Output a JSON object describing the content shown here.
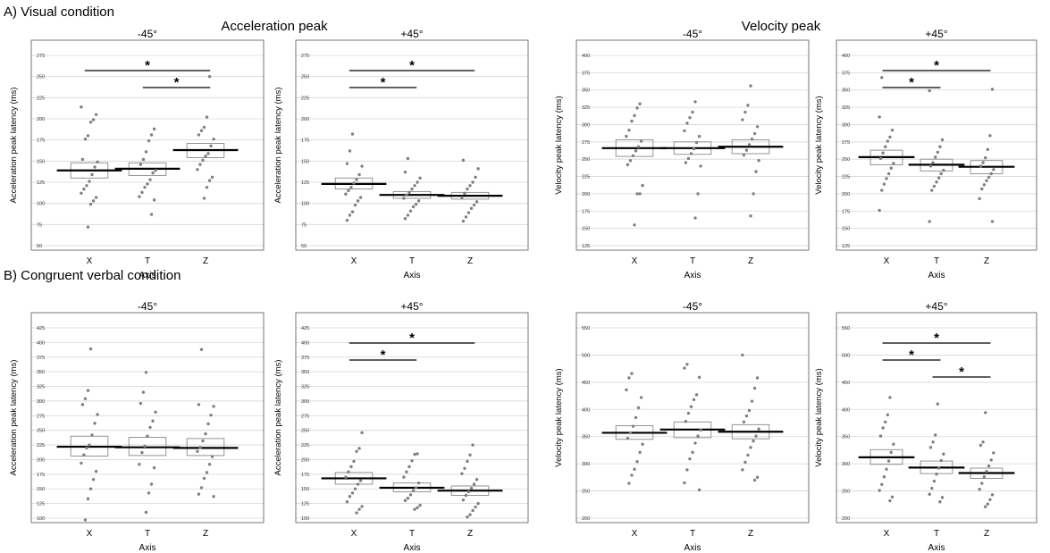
{
  "figure": {
    "section_a": "A) Visual condition",
    "section_b": "B) Congruent verbal condition",
    "group_acc": "Acceleration peak",
    "group_vel": "Velocity peak"
  },
  "chart_data": [
    {
      "id": "A-acc-m45",
      "type": "scatter",
      "title": "-45°",
      "xlabel": "Axis",
      "ylabel": "Acceleration peak latency (ms)",
      "ylim": [
        50,
        275
      ],
      "yticks": [
        50,
        75,
        100,
        125,
        150,
        175,
        200,
        225,
        250,
        275
      ],
      "grid": true,
      "categories": [
        "X",
        "T",
        "Z"
      ],
      "points": [
        [
          214,
          205,
          199,
          196,
          180,
          176,
          152,
          149,
          143,
          134,
          126,
          121,
          117,
          112,
          107,
          103,
          99,
          72
        ],
        [
          188,
          181,
          174,
          161,
          152,
          146,
          139,
          136,
          128,
          123,
          119,
          113,
          108,
          104,
          87
        ],
        [
          250,
          202,
          190,
          186,
          181,
          176,
          168,
          159,
          156,
          151,
          146,
          140,
          131,
          127,
          119,
          106
        ]
      ],
      "boxes": [
        {
          "median": 139,
          "q1": 130,
          "q3": 148
        },
        {
          "median": 141,
          "q1": 133,
          "q3": 148
        },
        {
          "median": 163,
          "q1": 154,
          "q3": 171
        }
      ],
      "significance": [
        {
          "from": "X",
          "to": "Z",
          "label": "*"
        },
        {
          "from": "T",
          "to": "Z",
          "label": "*"
        }
      ]
    },
    {
      "id": "A-acc-p45",
      "type": "scatter",
      "title": "+45°",
      "xlabel": "Axis",
      "ylabel": "Acceleration peak latency (ms)",
      "ylim": [
        50,
        275
      ],
      "yticks": [
        50,
        75,
        100,
        125,
        150,
        175,
        200,
        225,
        250,
        275
      ],
      "grid": true,
      "categories": [
        "X",
        "T",
        "Z"
      ],
      "points": [
        [
          182,
          162,
          147,
          144,
          134,
          128,
          124,
          119,
          115,
          111,
          107,
          103,
          98,
          90,
          86,
          80
        ],
        [
          153,
          137,
          130,
          125,
          121,
          117,
          113,
          110,
          106,
          103,
          99,
          96,
          91,
          86,
          82
        ],
        [
          151,
          141,
          131,
          125,
          121,
          117,
          112,
          107,
          102,
          98,
          94,
          89,
          84,
          79
        ]
      ],
      "boxes": [
        {
          "median": 123,
          "q1": 117,
          "q3": 130
        },
        {
          "median": 110,
          "q1": 106,
          "q3": 114
        },
        {
          "median": 109,
          "q1": 105,
          "q3": 113
        }
      ],
      "significance": [
        {
          "from": "X",
          "to": "Z",
          "label": "*"
        },
        {
          "from": "X",
          "to": "T",
          "label": "*"
        }
      ]
    },
    {
      "id": "A-vel-m45",
      "type": "scatter",
      "title": "-45°",
      "xlabel": "Axis",
      "ylabel": "Velocity peak latency (ms)",
      "ylim": [
        125,
        400
      ],
      "yticks": [
        125,
        150,
        175,
        200,
        225,
        250,
        275,
        300,
        325,
        350,
        375,
        400
      ],
      "grid": true,
      "categories": [
        "X",
        "T",
        "Z"
      ],
      "points": [
        [
          330,
          324,
          313,
          305,
          292,
          283,
          276,
          268,
          262,
          255,
          248,
          242,
          212,
          200,
          200,
          155
        ],
        [
          333,
          318,
          310,
          302,
          291,
          283,
          274,
          265,
          258,
          251,
          245,
          240,
          200,
          165
        ],
        [
          356,
          328,
          318,
          307,
          297,
          287,
          279,
          271,
          263,
          256,
          248,
          232,
          200,
          168
        ]
      ],
      "boxes": [
        {
          "median": 266,
          "q1": 254,
          "q3": 278
        },
        {
          "median": 266,
          "q1": 257,
          "q3": 275
        },
        {
          "median": 268,
          "q1": 258,
          "q3": 278
        }
      ],
      "significance": []
    },
    {
      "id": "A-vel-p45",
      "type": "scatter",
      "title": "+45°",
      "xlabel": "Axis",
      "ylabel": "Velocity peak latency (ms)",
      "ylim": [
        125,
        400
      ],
      "yticks": [
        125,
        150,
        175,
        200,
        225,
        250,
        275,
        300,
        325,
        350,
        375,
        400
      ],
      "grid": true,
      "categories": [
        "X",
        "T",
        "Z"
      ],
      "points": [
        [
          368,
          311,
          292,
          282,
          276,
          268,
          259,
          251,
          244,
          237,
          229,
          222,
          214,
          205,
          176
        ],
        [
          349,
          278,
          268,
          260,
          253,
          245,
          240,
          234,
          229,
          223,
          217,
          211,
          205,
          160
        ],
        [
          351,
          284,
          264,
          252,
          245,
          240,
          235,
          229,
          224,
          219,
          213,
          207,
          193,
          160
        ]
      ],
      "boxes": [
        {
          "median": 253,
          "q1": 242,
          "q3": 263
        },
        {
          "median": 242,
          "q1": 233,
          "q3": 250
        },
        {
          "median": 239,
          "q1": 229,
          "q3": 248
        }
      ],
      "significance": [
        {
          "from": "X",
          "to": "Z",
          "label": "*"
        },
        {
          "from": "X",
          "to": "T",
          "label": "*"
        }
      ]
    },
    {
      "id": "B-acc-m45",
      "type": "scatter",
      "title": "-45°",
      "xlabel": "Axis",
      "ylabel": "Acceleration peak latency (ms)",
      "ylim": [
        100,
        425
      ],
      "yticks": [
        100,
        125,
        150,
        175,
        200,
        225,
        250,
        275,
        300,
        325,
        350,
        375,
        400,
        425
      ],
      "grid": true,
      "categories": [
        "X",
        "T",
        "Z"
      ],
      "points": [
        [
          389,
          318,
          304,
          294,
          277,
          262,
          242,
          225,
          220,
          208,
          194,
          180,
          166,
          150,
          133,
          97
        ],
        [
          349,
          315,
          296,
          281,
          266,
          255,
          240,
          223,
          212,
          192,
          186,
          158,
          143,
          110
        ],
        [
          388,
          294,
          291,
          276,
          261,
          244,
          232,
          221,
          214,
          205,
          192,
          178,
          168,
          152,
          141,
          137
        ]
      ],
      "boxes": [
        {
          "median": 222,
          "q1": 206,
          "q3": 240
        },
        {
          "median": 221,
          "q1": 207,
          "q3": 238
        },
        {
          "median": 220,
          "q1": 207,
          "q3": 236
        }
      ],
      "significance": []
    },
    {
      "id": "B-acc-p45",
      "type": "scatter",
      "title": "+45°",
      "xlabel": "Axis",
      "ylabel": "Acceleration peak latency (ms)",
      "ylim": [
        100,
        425
      ],
      "yticks": [
        100,
        125,
        150,
        175,
        200,
        225,
        250,
        275,
        300,
        325,
        350,
        375,
        400,
        425
      ],
      "grid": true,
      "categories": [
        "X",
        "T",
        "Z"
      ],
      "points": [
        [
          246,
          219,
          214,
          197,
          188,
          179,
          170,
          164,
          158,
          150,
          143,
          137,
          128,
          120,
          115,
          109
        ],
        [
          210,
          209,
          198,
          188,
          179,
          170,
          160,
          152,
          147,
          140,
          134,
          130,
          122,
          118,
          115
        ],
        [
          225,
          208,
          197,
          185,
          176,
          166,
          158,
          151,
          145,
          139,
          131,
          125,
          119,
          113,
          106,
          102
        ]
      ],
      "boxes": [
        {
          "median": 168,
          "q1": 158,
          "q3": 178
        },
        {
          "median": 152,
          "q1": 145,
          "q3": 160
        },
        {
          "median": 147,
          "q1": 139,
          "q3": 155
        }
      ],
      "significance": [
        {
          "from": "X",
          "to": "Z",
          "label": "*"
        },
        {
          "from": "X",
          "to": "T",
          "label": "*"
        }
      ]
    },
    {
      "id": "B-vel-m45",
      "type": "scatter",
      "title": "-45°",
      "xlabel": "Axis",
      "ylabel": "Velocity peak latency (ms)",
      "ylim": [
        200,
        550
      ],
      "yticks": [
        200,
        250,
        300,
        350,
        400,
        450,
        500,
        550
      ],
      "grid": true,
      "categories": [
        "X",
        "T",
        "Z"
      ],
      "points": [
        [
          466,
          458,
          436,
          422,
          403,
          385,
          369,
          357,
          347,
          336,
          321,
          304,
          290,
          279,
          264
        ],
        [
          483,
          476,
          459,
          427,
          418,
          405,
          393,
          378,
          362,
          351,
          338,
          321,
          309,
          289,
          265,
          252
        ],
        [
          500,
          458,
          439,
          415,
          398,
          388,
          377,
          364,
          351,
          342,
          330,
          316,
          303,
          289,
          275,
          270
        ]
      ],
      "boxes": [
        {
          "median": 357,
          "q1": 345,
          "q3": 370
        },
        {
          "median": 363,
          "q1": 348,
          "q3": 377
        },
        {
          "median": 359,
          "q1": 346,
          "q3": 372
        }
      ],
      "significance": []
    },
    {
      "id": "B-vel-p45",
      "type": "scatter",
      "title": "+45°",
      "xlabel": "Axis",
      "ylabel": "Velocity peak latency (ms)",
      "ylim": [
        200,
        550
      ],
      "yticks": [
        200,
        250,
        300,
        350,
        400,
        450,
        500,
        550
      ],
      "grid": true,
      "categories": [
        "X",
        "T",
        "Z"
      ],
      "points": [
        [
          422,
          390,
          377,
          366,
          351,
          336,
          321,
          305,
          290,
          276,
          262,
          251,
          239,
          232
        ],
        [
          410,
          353,
          340,
          330,
          318,
          306,
          292,
          281,
          268,
          255,
          244,
          238,
          230
        ],
        [
          394,
          340,
          334,
          320,
          307,
          296,
          286,
          276,
          264,
          253,
          243,
          234,
          226,
          221
        ]
      ],
      "boxes": [
        {
          "median": 312,
          "q1": 299,
          "q3": 326
        },
        {
          "median": 293,
          "q1": 282,
          "q3": 305
        },
        {
          "median": 283,
          "q1": 273,
          "q3": 292
        }
      ],
      "significance": [
        {
          "from": "X",
          "to": "Z",
          "label": "*"
        },
        {
          "from": "X",
          "to": "T",
          "label": "*"
        },
        {
          "from": "T",
          "to": "Z",
          "label": "*"
        }
      ]
    }
  ]
}
